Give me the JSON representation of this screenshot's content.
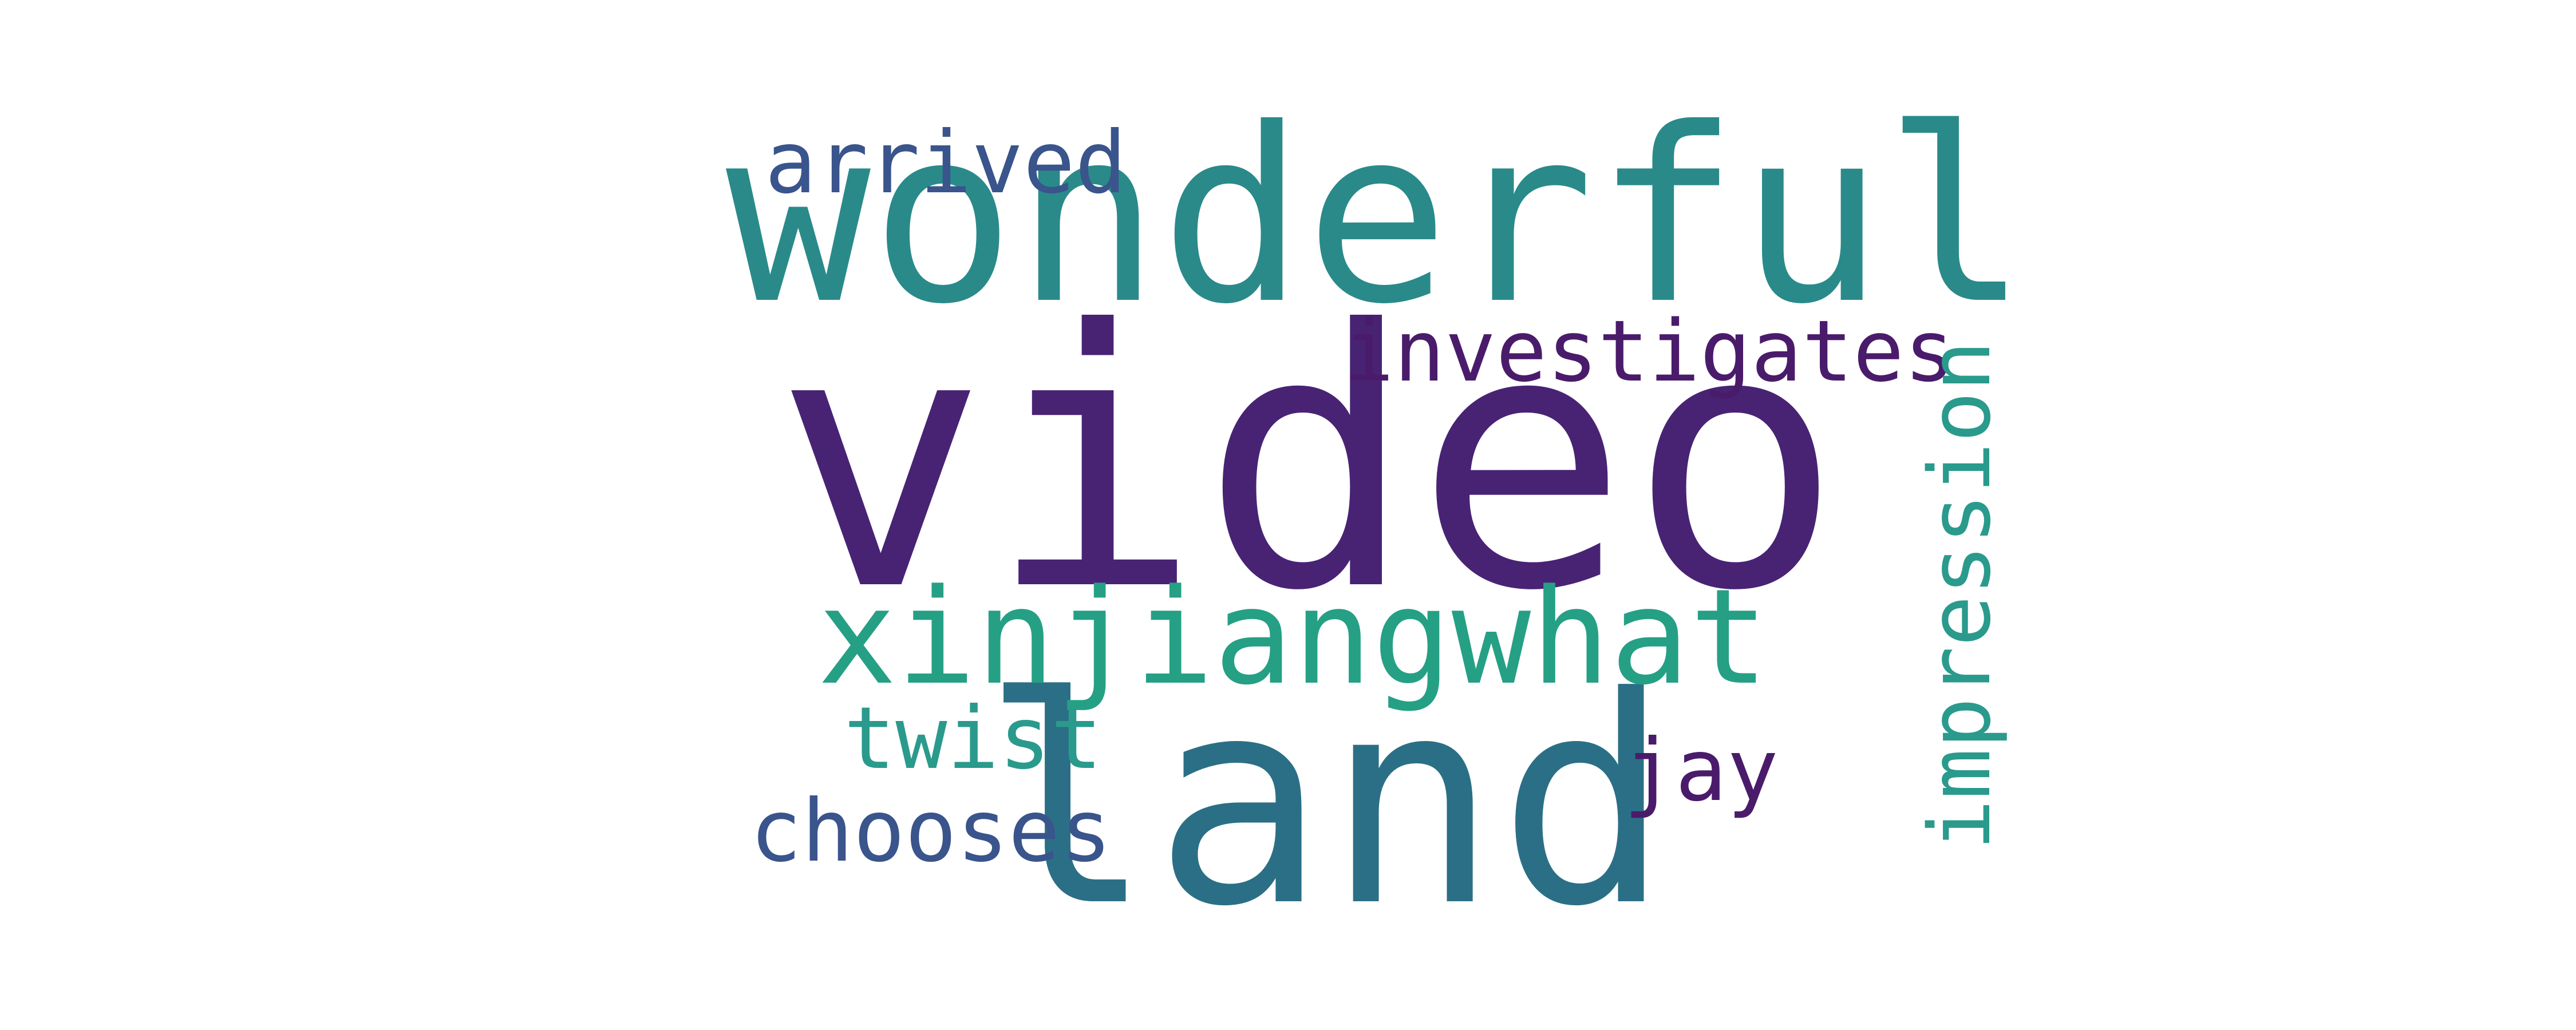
{
  "wordcloud": {
    "words": [
      {
        "text": "video",
        "color": "#482374"
      },
      {
        "text": "wonderful",
        "color": "#2a8a8a"
      },
      {
        "text": "land",
        "color": "#2b6f86"
      },
      {
        "text": "xinjiangwhat",
        "color": "#25a085"
      },
      {
        "text": "investigates",
        "color": "#4a1b6b"
      },
      {
        "text": "impression",
        "color": "#2a9a8c"
      },
      {
        "text": "arrived",
        "color": "#3a548c"
      },
      {
        "text": "twist",
        "color": "#2a9a8c"
      },
      {
        "text": "chooses",
        "color": "#3a548c"
      },
      {
        "text": "jay",
        "color": "#4a1b6b"
      }
    ]
  }
}
